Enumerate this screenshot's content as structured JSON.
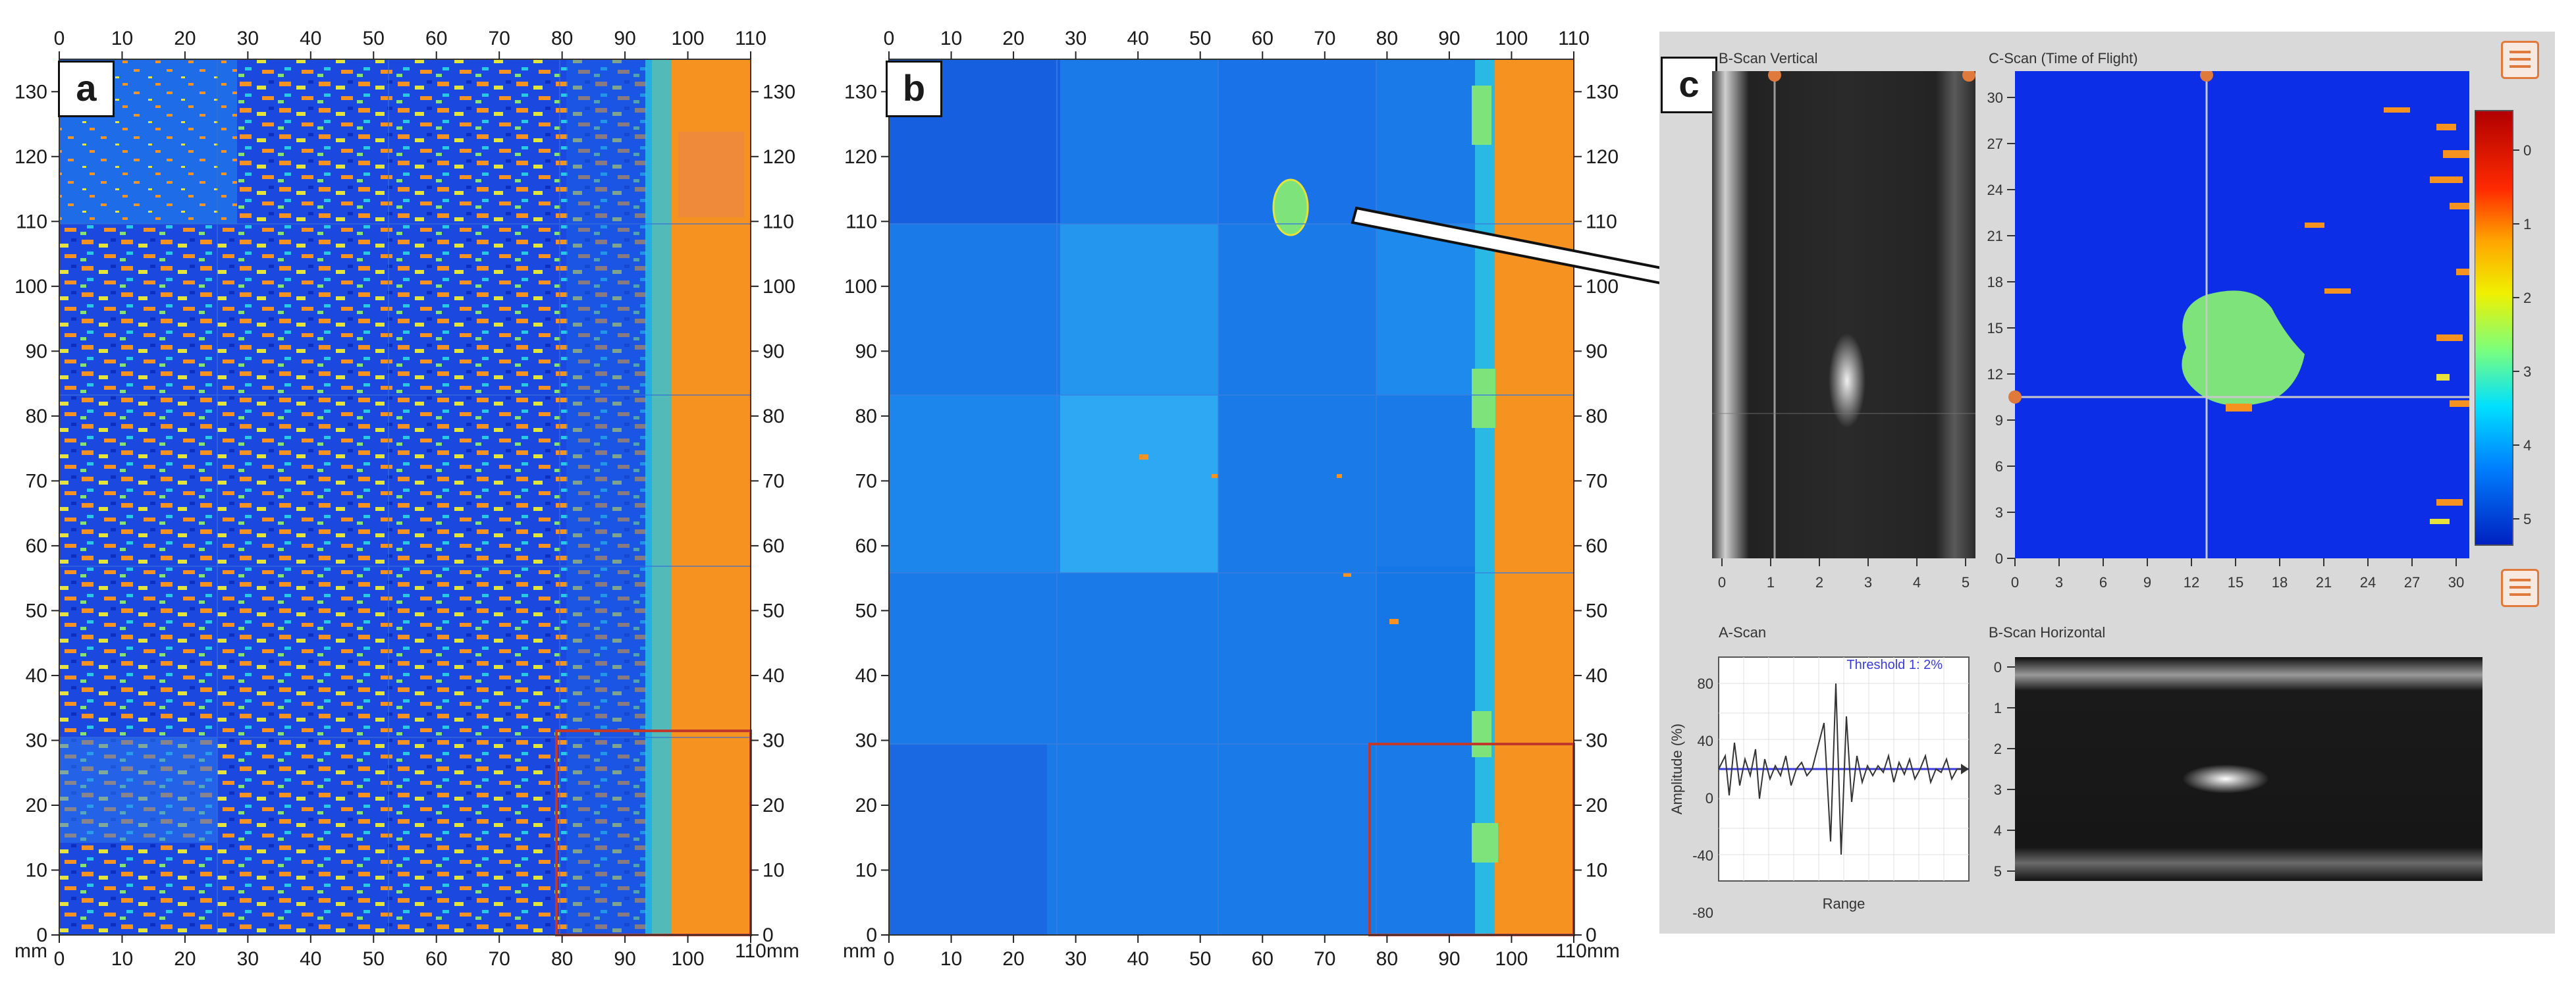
{
  "panels": {
    "a": {
      "letter": "a",
      "x_ticks": [
        "0",
        "10",
        "20",
        "30",
        "40",
        "50",
        "60",
        "70",
        "80",
        "90",
        "100",
        "110"
      ],
      "y_ticks": [
        "0",
        "10",
        "20",
        "30",
        "40",
        "50",
        "60",
        "70",
        "80",
        "90",
        "100",
        "110",
        "120",
        "130"
      ],
      "unit": "mm",
      "bottom_end_label": "110mm"
    },
    "b": {
      "letter": "b",
      "x_ticks": [
        "0",
        "10",
        "20",
        "30",
        "40",
        "50",
        "60",
        "70",
        "80",
        "90",
        "100",
        "110"
      ],
      "y_ticks": [
        "0",
        "10",
        "20",
        "30",
        "40",
        "50",
        "60",
        "70",
        "80",
        "90",
        "100",
        "110",
        "120",
        "130"
      ],
      "unit": "mm",
      "bottom_end_label": "110mm"
    },
    "c": {
      "letter": "c",
      "bscan_vertical": {
        "title": "B-Scan Vertical",
        "x_ticks": [
          "0",
          "1",
          "2",
          "3",
          "4",
          "5"
        ]
      },
      "cscan": {
        "title": "C-Scan (Time of Flight)",
        "x_ticks": [
          "0",
          "3",
          "6",
          "9",
          "12",
          "15",
          "18",
          "21",
          "24",
          "27",
          "30"
        ],
        "y_ticks": [
          "0",
          "3",
          "6",
          "9",
          "12",
          "15",
          "18",
          "21",
          "24",
          "27",
          "30"
        ]
      },
      "colorbar": {
        "ticks": [
          "0",
          "1",
          "2",
          "3",
          "4",
          "5"
        ],
        "colors": [
          "#b00000",
          "#ff2a00",
          "#ffa500",
          "#f0f000",
          "#7cff7c",
          "#00e0ff",
          "#0080ff",
          "#0020c0"
        ]
      },
      "ascan": {
        "title": "A-Scan",
        "y_label": "Amplitude (%)",
        "x_label": "Range",
        "threshold": "Threshold 1: 2%",
        "y_ticks": [
          "80",
          "40",
          "0",
          "-40",
          "-80"
        ]
      },
      "bscan_horizontal": {
        "title": "B-Scan Horizontal",
        "y_ticks": [
          "0",
          "1",
          "2",
          "3",
          "4",
          "5"
        ]
      }
    }
  },
  "colors": {
    "deep_blue": "#0a2fd6",
    "mid_blue": "#1e74f0",
    "light_blue": "#2aa4f4",
    "cyan": "#26d3e6",
    "green": "#7de37a",
    "yellow": "#e8e33a",
    "orange": "#f7921e",
    "red_box": "#c0392b",
    "accent_orange": "#e07a3c"
  }
}
